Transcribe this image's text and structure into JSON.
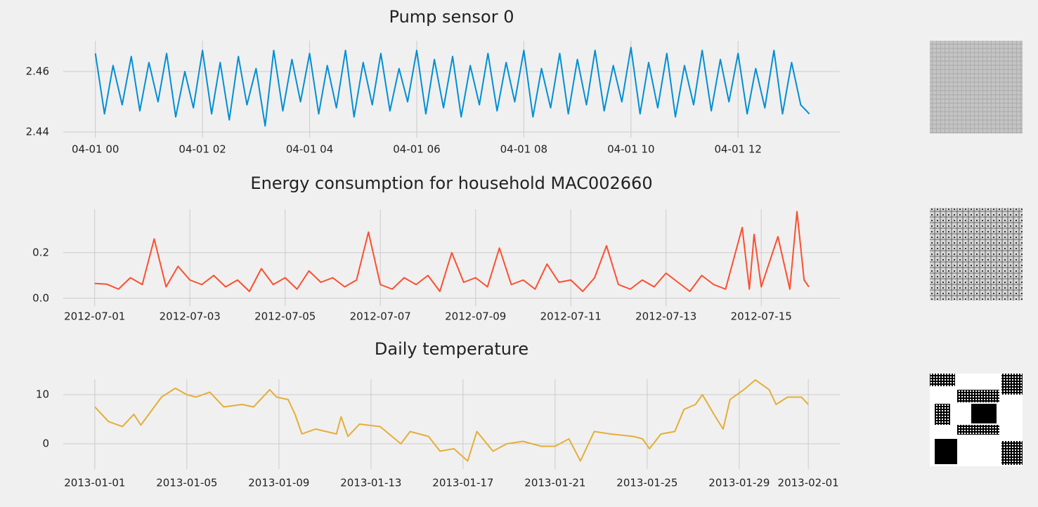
{
  "chart_data": [
    {
      "type": "line",
      "title": "Pump sensor 0",
      "color": "#008fd5",
      "grid": true,
      "x": [
        0,
        0.17,
        0.33,
        0.5,
        0.67,
        0.83,
        1,
        1.17,
        1.33,
        1.5,
        1.67,
        1.83,
        2,
        2.17,
        2.33,
        2.5,
        2.67,
        2.83,
        3,
        3.17,
        3.33,
        3.5,
        3.67,
        3.83,
        4,
        4.17,
        4.33,
        4.5,
        4.67,
        4.83,
        5,
        5.17,
        5.33,
        5.5,
        5.67,
        5.83,
        6,
        6.17,
        6.33,
        6.5,
        6.67,
        6.83,
        7,
        7.17,
        7.33,
        7.5,
        7.67,
        7.83,
        8,
        8.17,
        8.33,
        8.5,
        8.67,
        8.83,
        9,
        9.17,
        9.33,
        9.5,
        9.67,
        9.83,
        10,
        10.17,
        10.33,
        10.5,
        10.67,
        10.83,
        11,
        11.17,
        11.33,
        11.5,
        11.67,
        11.83,
        12,
        12.17,
        12.33,
        12.5,
        12.67,
        12.83,
        13,
        13.17,
        13.33
      ],
      "values": [
        2.466,
        2.446,
        2.462,
        2.449,
        2.465,
        2.447,
        2.463,
        2.45,
        2.466,
        2.445,
        2.46,
        2.448,
        2.467,
        2.446,
        2.463,
        2.444,
        2.465,
        2.449,
        2.461,
        2.442,
        2.467,
        2.447,
        2.464,
        2.45,
        2.466,
        2.446,
        2.462,
        2.448,
        2.467,
        2.445,
        2.463,
        2.449,
        2.466,
        2.447,
        2.461,
        2.45,
        2.467,
        2.446,
        2.464,
        2.448,
        2.465,
        2.445,
        2.462,
        2.449,
        2.466,
        2.447,
        2.463,
        2.45,
        2.467,
        2.445,
        2.461,
        2.448,
        2.466,
        2.446,
        2.464,
        2.449,
        2.467,
        2.447,
        2.462,
        2.45,
        2.468,
        2.446,
        2.463,
        2.448,
        2.466,
        2.445,
        2.462,
        2.449,
        2.467,
        2.447,
        2.464,
        2.45,
        2.466,
        2.446,
        2.461,
        2.448,
        2.467,
        2.446,
        2.463,
        2.449,
        2.446
      ],
      "xlim": [
        -0.6,
        13.9
      ],
      "ylim": [
        2.44,
        2.4702
      ],
      "xticks": [
        {
          "value": 0,
          "label": "04-01 00"
        },
        {
          "value": 2,
          "label": "04-01 02"
        },
        {
          "value": 4,
          "label": "04-01 04"
        },
        {
          "value": 6,
          "label": "04-01 06"
        },
        {
          "value": 8,
          "label": "04-01 08"
        },
        {
          "value": 10,
          "label": "04-01 10"
        },
        {
          "value": 12,
          "label": "04-01 12"
        }
      ],
      "yticks": [
        2.44,
        2.46
      ]
    },
    {
      "type": "line",
      "title": "Energy consumption for household MAC002660",
      "color": "#fc4f30",
      "grid": true,
      "x": [
        0,
        0.25,
        0.5,
        0.75,
        1,
        1.25,
        1.5,
        1.75,
        2,
        2.25,
        2.5,
        2.75,
        3,
        3.25,
        3.5,
        3.75,
        4,
        4.25,
        4.5,
        4.75,
        5,
        5.25,
        5.5,
        5.75,
        6,
        6.25,
        6.5,
        6.75,
        7,
        7.25,
        7.5,
        7.75,
        8,
        8.25,
        8.5,
        8.75,
        9,
        9.25,
        9.5,
        9.75,
        10,
        10.25,
        10.5,
        10.75,
        11,
        11.25,
        11.5,
        11.75,
        12,
        12.25,
        12.5,
        12.75,
        13,
        13.25,
        13.6,
        13.75,
        13.85,
        14,
        14.35,
        14.6,
        14.75,
        14.9,
        15
      ],
      "values": [
        0.065,
        0.062,
        0.04,
        0.09,
        0.06,
        0.26,
        0.05,
        0.14,
        0.08,
        0.06,
        0.1,
        0.05,
        0.08,
        0.03,
        0.13,
        0.06,
        0.09,
        0.04,
        0.12,
        0.07,
        0.09,
        0.05,
        0.08,
        0.29,
        0.06,
        0.04,
        0.09,
        0.06,
        0.1,
        0.03,
        0.2,
        0.07,
        0.09,
        0.05,
        0.22,
        0.06,
        0.08,
        0.04,
        0.15,
        0.07,
        0.08,
        0.03,
        0.09,
        0.23,
        0.06,
        0.04,
        0.08,
        0.05,
        0.11,
        0.07,
        0.03,
        0.1,
        0.06,
        0.04,
        0.31,
        0.04,
        0.28,
        0.05,
        0.27,
        0.04,
        0.38,
        0.08,
        0.05
      ],
      "xlim": [
        -0.66,
        15.65
      ],
      "ylim": [
        -0.01,
        0.39
      ],
      "xticks": [
        {
          "value": 0,
          "label": "2012-07-01"
        },
        {
          "value": 2,
          "label": "2012-07-03"
        },
        {
          "value": 4,
          "label": "2012-07-05"
        },
        {
          "value": 6,
          "label": "2012-07-07"
        },
        {
          "value": 8,
          "label": "2012-07-09"
        },
        {
          "value": 10,
          "label": "2012-07-11"
        },
        {
          "value": 12,
          "label": "2012-07-13"
        },
        {
          "value": 14,
          "label": "2012-07-15"
        }
      ],
      "yticks": [
        {
          "value": 0,
          "label": "0.0"
        },
        0.2
      ]
    },
    {
      "type": "line",
      "title": "Daily temperature",
      "color": "#e5ae38",
      "grid": true,
      "x": [
        0,
        0.6,
        1.2,
        1.7,
        2,
        2.9,
        3.5,
        4,
        4.4,
        5,
        5.6,
        6.4,
        6.9,
        7.6,
        7.9,
        8.4,
        8.7,
        9,
        9.6,
        10.5,
        10.7,
        11,
        11.5,
        12.4,
        13.3,
        13.7,
        14.5,
        15,
        15.6,
        16.2,
        16.6,
        17.3,
        17.9,
        18.6,
        19.4,
        20,
        20.6,
        21.1,
        21.7,
        22.4,
        23.4,
        23.8,
        24.1,
        24.6,
        25.2,
        25.6,
        26.1,
        26.4,
        26.9,
        27.3,
        27.6,
        28.2,
        28.7,
        29,
        29.3,
        29.6,
        30.1,
        30.7,
        31
      ],
      "values": [
        7.5,
        4.5,
        3.5,
        6,
        3.8,
        9.5,
        11.3,
        10,
        9.5,
        10.5,
        7.5,
        8,
        7.5,
        11,
        9.5,
        9,
        6,
        2,
        3,
        2,
        5.5,
        1.5,
        4,
        3.5,
        0,
        2.5,
        1.5,
        -1.5,
        -1,
        -3.5,
        2.5,
        -1.5,
        0,
        0.5,
        -0.5,
        -0.5,
        1,
        -3.5,
        2.5,
        2,
        1.5,
        1,
        -1,
        2,
        2.5,
        7,
        8,
        10,
        6,
        3,
        9,
        11,
        13,
        12,
        11,
        8,
        9.5,
        9.5,
        8
      ],
      "xlim": [
        -1.37,
        32.37
      ],
      "ylim": [
        -4,
        13.14
      ],
      "xticks": [
        {
          "value": 0,
          "label": "2013-01-01"
        },
        {
          "value": 4,
          "label": "2013-01-05"
        },
        {
          "value": 8,
          "label": "2013-01-09"
        },
        {
          "value": 12,
          "label": "2013-01-13"
        },
        {
          "value": 16,
          "label": "2013-01-17"
        },
        {
          "value": 20,
          "label": "2013-01-21"
        },
        {
          "value": 24,
          "label": "2013-01-25"
        },
        {
          "value": 28,
          "label": "2013-01-29"
        },
        {
          "value": 31,
          "label": "2013-02-01"
        }
      ],
      "yticks": [
        0,
        10
      ]
    }
  ]
}
